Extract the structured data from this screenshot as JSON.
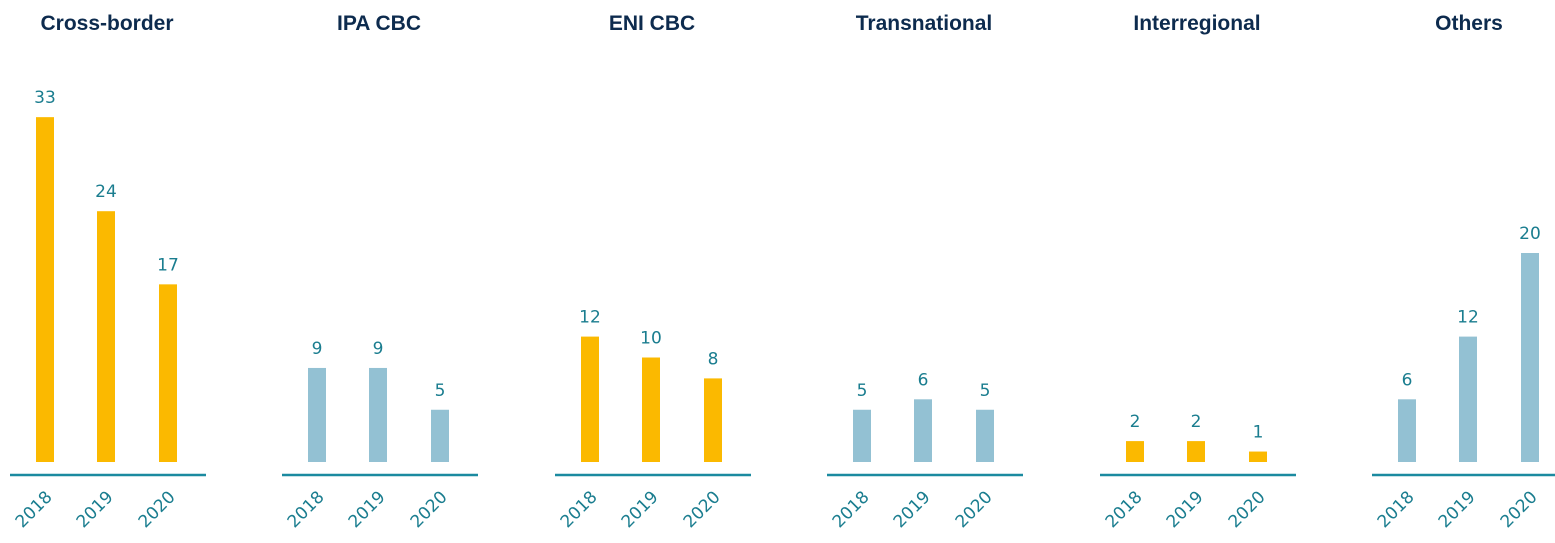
{
  "chart_data": [
    {
      "type": "bar",
      "title": "Cross-border",
      "categories": [
        "2018",
        "2019",
        "2020"
      ],
      "values": [
        33,
        24,
        17
      ],
      "color": "#fbb900"
    },
    {
      "type": "bar",
      "title": "IPA CBC",
      "categories": [
        "2018",
        "2019",
        "2020"
      ],
      "values": [
        9,
        9,
        5
      ],
      "color": "#93c1d3"
    },
    {
      "type": "bar",
      "title": "ENI CBC",
      "categories": [
        "2018",
        "2019",
        "2020"
      ],
      "values": [
        12,
        10,
        8
      ],
      "color": "#fbb900"
    },
    {
      "type": "bar",
      "title": "Transnational",
      "categories": [
        "2018",
        "2019",
        "2020"
      ],
      "values": [
        5,
        6,
        5
      ],
      "color": "#93c1d3"
    },
    {
      "type": "bar",
      "title": "Interregional",
      "categories": [
        "2018",
        "2019",
        "2020"
      ],
      "values": [
        2,
        2,
        1
      ],
      "color": "#fbb900"
    },
    {
      "type": "bar",
      "title": "Others",
      "categories": [
        "2018",
        "2019",
        "2020"
      ],
      "values": [
        6,
        12,
        20
      ],
      "color": "#93c1d3"
    }
  ]
}
